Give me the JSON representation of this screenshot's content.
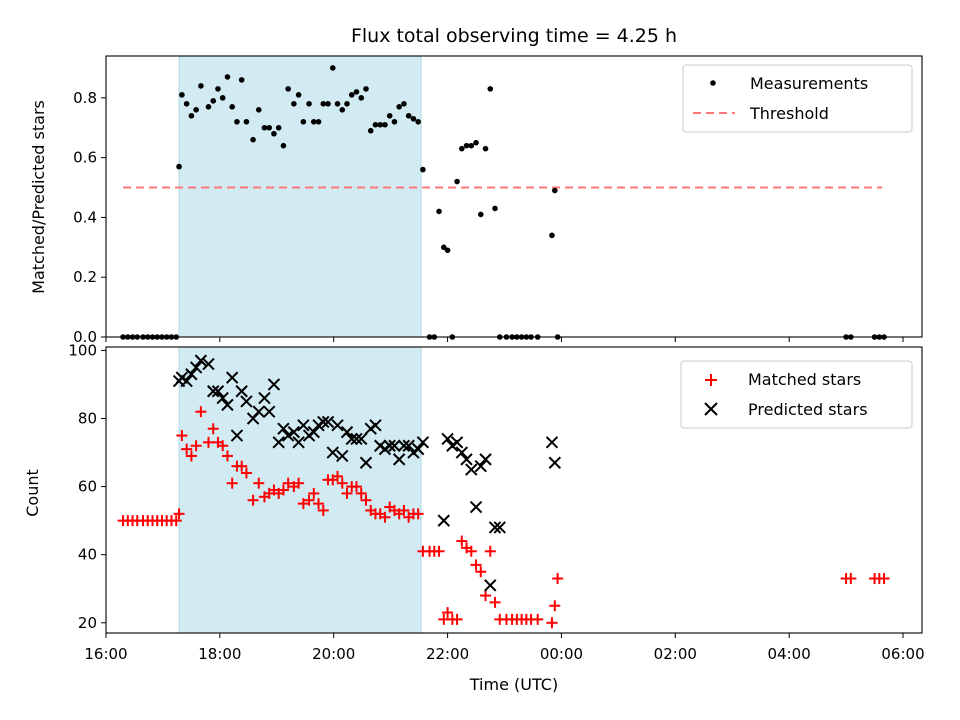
{
  "title": "Flux total observing time = 4.25 h",
  "colors": {
    "shade": "#add8e6",
    "threshold": "#ff7777",
    "matched": "#ff0000",
    "predicted": "#000000",
    "measure": "#000000"
  },
  "chart_data": [
    {
      "type": "scatter",
      "panel": "top",
      "title": "Flux total observing time = 4.25 h",
      "xlabel": "",
      "ylabel": "Matched/Predicted stars",
      "xlim": [
        "16:00",
        "06:20"
      ],
      "ylim": [
        0.0,
        0.94
      ],
      "yticks": [
        0.0,
        0.2,
        0.4,
        0.6,
        0.8
      ],
      "legend": "top-right",
      "shaded_interval": [
        "17:17",
        "21:32"
      ],
      "threshold": {
        "name": "Threshold",
        "y": 0.5,
        "x": [
          "16:18",
          "05:38"
        ],
        "style": "dashed"
      },
      "series": [
        {
          "name": "Measurements",
          "marker": "dot",
          "x": [
            "16:18",
            "16:23",
            "16:28",
            "16:33",
            "16:39",
            "16:44",
            "16:49",
            "16:54",
            "16:59",
            "17:04",
            "17:09",
            "17:14",
            "17:17",
            "17:20",
            "17:25",
            "17:30",
            "17:35",
            "17:40",
            "17:48",
            "17:53",
            "17:58",
            "18:03",
            "18:08",
            "18:13",
            "18:18",
            "18:23",
            "18:28",
            "18:35",
            "18:41",
            "18:47",
            "18:52",
            "18:57",
            "19:02",
            "19:07",
            "19:12",
            "19:18",
            "19:23",
            "19:28",
            "19:34",
            "19:39",
            "19:44",
            "19:49",
            "19:54",
            "19:59",
            "20:04",
            "20:09",
            "20:14",
            "20:19",
            "20:24",
            "20:29",
            "20:34",
            "20:39",
            "20:44",
            "20:49",
            "20:54",
            "20:59",
            "21:04",
            "21:09",
            "21:14",
            "21:19",
            "21:24",
            "21:29",
            "21:34",
            "21:41",
            "21:46",
            "21:51",
            "21:56",
            "22:00",
            "22:05",
            "22:10",
            "22:15",
            "22:20",
            "22:25",
            "22:30",
            "22:35",
            "22:40",
            "22:45",
            "22:50",
            "22:55",
            "23:02",
            "23:08",
            "23:13",
            "23:18",
            "23:23",
            "23:28",
            "23:35",
            "23:50",
            "23:53",
            "23:56",
            "05:00",
            "05:05",
            "05:30",
            "05:35",
            "05:40"
          ],
          "y": [
            0.0,
            0.0,
            0.0,
            0.0,
            0.0,
            0.0,
            0.0,
            0.0,
            0.0,
            0.0,
            0.0,
            0.0,
            0.57,
            0.81,
            0.78,
            0.74,
            0.76,
            0.84,
            0.77,
            0.79,
            0.83,
            0.8,
            0.87,
            0.77,
            0.72,
            0.86,
            0.72,
            0.66,
            0.76,
            0.7,
            0.7,
            0.68,
            0.7,
            0.64,
            0.83,
            0.78,
            0.81,
            0.72,
            0.78,
            0.72,
            0.72,
            0.78,
            0.78,
            0.9,
            0.78,
            0.76,
            0.78,
            0.81,
            0.82,
            0.8,
            0.83,
            0.69,
            0.71,
            0.71,
            0.71,
            0.74,
            0.72,
            0.77,
            0.78,
            0.74,
            0.73,
            0.72,
            0.56,
            0.0,
            0.0,
            0.42,
            0.3,
            0.29,
            0.0,
            0.52,
            0.63,
            0.64,
            0.64,
            0.65,
            0.41,
            0.63,
            0.83,
            0.43,
            0.0,
            0.0,
            0.0,
            0.0,
            0.0,
            0.0,
            0.0,
            0.0,
            0.34,
            0.49,
            0.0,
            0.0,
            0.0,
            0.0,
            0.0,
            0.0
          ]
        }
      ]
    },
    {
      "type": "scatter",
      "panel": "bottom",
      "xlabel": "Time (UTC)",
      "ylabel": "Count",
      "xlim": [
        "16:00",
        "06:20"
      ],
      "ylim": [
        17,
        101
      ],
      "yticks": [
        20,
        40,
        60,
        80,
        100
      ],
      "xticks": [
        "16:00",
        "18:00",
        "20:00",
        "22:00",
        "00:00",
        "02:00",
        "04:00",
        "06:00"
      ],
      "legend": "top-right",
      "shaded_interval": [
        "17:17",
        "21:32"
      ],
      "series": [
        {
          "name": "Matched stars",
          "marker": "plus",
          "x": [
            "16:18",
            "16:23",
            "16:28",
            "16:33",
            "16:39",
            "16:44",
            "16:49",
            "16:54",
            "16:59",
            "17:04",
            "17:09",
            "17:14",
            "17:17",
            "17:20",
            "17:25",
            "17:30",
            "17:35",
            "17:40",
            "17:48",
            "17:53",
            "17:58",
            "18:03",
            "18:08",
            "18:13",
            "18:18",
            "18:23",
            "18:28",
            "18:35",
            "18:41",
            "18:47",
            "18:52",
            "18:57",
            "19:02",
            "19:07",
            "19:12",
            "19:18",
            "19:23",
            "19:28",
            "19:34",
            "19:39",
            "19:44",
            "19:49",
            "19:54",
            "19:59",
            "20:04",
            "20:09",
            "20:14",
            "20:19",
            "20:24",
            "20:29",
            "20:34",
            "20:39",
            "20:44",
            "20:49",
            "20:54",
            "20:59",
            "21:04",
            "21:09",
            "21:14",
            "21:19",
            "21:24",
            "21:29",
            "21:34",
            "21:41",
            "21:46",
            "21:51",
            "21:56",
            "22:00",
            "22:05",
            "22:10",
            "22:15",
            "22:20",
            "22:25",
            "22:30",
            "22:35",
            "22:40",
            "22:45",
            "22:50",
            "22:55",
            "23:02",
            "23:08",
            "23:13",
            "23:18",
            "23:23",
            "23:28",
            "23:35",
            "23:50",
            "23:53",
            "23:56",
            "05:00",
            "05:05",
            "05:30",
            "05:35",
            "05:40"
          ],
          "y": [
            50,
            50,
            50,
            50,
            50,
            50,
            50,
            50,
            50,
            50,
            50,
            50,
            52,
            75,
            71,
            69,
            72,
            82,
            73,
            77,
            73,
            72,
            69,
            61,
            66,
            66,
            64,
            56,
            61,
            57,
            58,
            59,
            58,
            59,
            61,
            60,
            61,
            55,
            56,
            58,
            55,
            53,
            62,
            62,
            63,
            61,
            58,
            60,
            60,
            58,
            56,
            53,
            52,
            52,
            51,
            54,
            53,
            52,
            53,
            51,
            52,
            52,
            41,
            41,
            41,
            41,
            21,
            23,
            21,
            21,
            44,
            42,
            41,
            37,
            35,
            28,
            41,
            26,
            21,
            21,
            21,
            21,
            21,
            21,
            21,
            21,
            20,
            25,
            33,
            33,
            33,
            33,
            33,
            33
          ]
        },
        {
          "name": "Predicted stars",
          "marker": "x",
          "x": [
            "17:17",
            "17:20",
            "17:25",
            "17:30",
            "17:35",
            "17:40",
            "17:48",
            "17:53",
            "17:58",
            "18:03",
            "18:08",
            "18:13",
            "18:18",
            "18:23",
            "18:28",
            "18:35",
            "18:41",
            "18:47",
            "18:52",
            "18:57",
            "19:02",
            "19:07",
            "19:12",
            "19:18",
            "19:23",
            "19:28",
            "19:34",
            "19:39",
            "19:44",
            "19:49",
            "19:54",
            "19:59",
            "20:04",
            "20:09",
            "20:14",
            "20:19",
            "20:24",
            "20:29",
            "20:34",
            "20:39",
            "20:44",
            "20:49",
            "20:54",
            "20:59",
            "21:04",
            "21:09",
            "21:14",
            "21:19",
            "21:24",
            "21:29",
            "21:34",
            "21:56",
            "22:00",
            "22:05",
            "22:10",
            "22:15",
            "22:20",
            "22:25",
            "22:30",
            "22:35",
            "22:40",
            "22:45",
            "22:50",
            "22:55",
            "23:50",
            "23:53"
          ],
          "y": [
            91,
            92,
            91,
            93,
            95,
            97,
            96,
            88,
            88,
            86,
            84,
            92,
            75,
            88,
            85,
            80,
            82,
            86,
            82,
            90,
            73,
            77,
            75,
            76,
            73,
            78,
            75,
            76,
            78,
            79,
            79,
            70,
            78,
            69,
            76,
            74,
            74,
            74,
            67,
            77,
            78,
            72,
            71,
            72,
            72,
            68,
            72,
            72,
            70,
            71,
            73,
            50,
            74,
            72,
            73,
            70,
            68,
            65,
            54,
            66,
            68,
            31,
            48,
            48,
            73,
            67
          ]
        }
      ]
    }
  ]
}
